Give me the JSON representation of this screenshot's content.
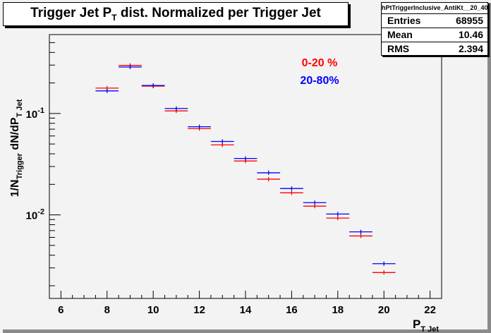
{
  "title": {
    "main": "Trigger Jet P",
    "sub": "T",
    "rest": " dist. Normalized per Trigger Jet"
  },
  "stats": {
    "name": "hPtTriggerInclusive_AntiKt__20_40",
    "rows": [
      {
        "key": "Entries",
        "value": "68955"
      },
      {
        "key": "Mean",
        "value": "10.46"
      },
      {
        "key": "RMS",
        "value": "2.394"
      }
    ]
  },
  "chart_data": {
    "type": "scatter",
    "xlabel": "P",
    "xlabel_sub": "T Jet",
    "ylabel_parts": {
      "a": "1/N",
      "a_sub": "Trigger",
      "b": " dN/dP",
      "b_sub": "T Jet"
    },
    "xlim": [
      5.5,
      22.5
    ],
    "ylim": [
      0.0015,
      0.6
    ],
    "yscale": "log",
    "xticks": [
      "6",
      "8",
      "10",
      "12",
      "14",
      "16",
      "18",
      "20",
      "22"
    ],
    "yticks": [
      {
        "base": "10",
        "exp": "-2",
        "value": 0.01
      },
      {
        "base": "10",
        "exp": "-1",
        "value": 0.1
      }
    ],
    "x_bin_half_width": 0.5,
    "series": [
      {
        "name": "0-20 %",
        "color": "#ff0000",
        "x": [
          8,
          9,
          10,
          11,
          12,
          13,
          14,
          15,
          16,
          17,
          18,
          19,
          20
        ],
        "y": [
          0.178,
          0.298,
          0.186,
          0.106,
          0.071,
          0.049,
          0.034,
          0.0225,
          0.0165,
          0.0122,
          0.0093,
          0.0062,
          0.0027
        ]
      },
      {
        "name": "20-80%",
        "color": "#0000ff",
        "x": [
          8,
          9,
          10,
          11,
          12,
          13,
          14,
          15,
          16,
          17,
          18,
          19,
          20
        ],
        "y": [
          0.167,
          0.287,
          0.189,
          0.112,
          0.074,
          0.053,
          0.036,
          0.026,
          0.0182,
          0.0132,
          0.0102,
          0.0068,
          0.0033
        ]
      }
    ],
    "legend_placement": "top-right, inside plot",
    "grid": false
  }
}
